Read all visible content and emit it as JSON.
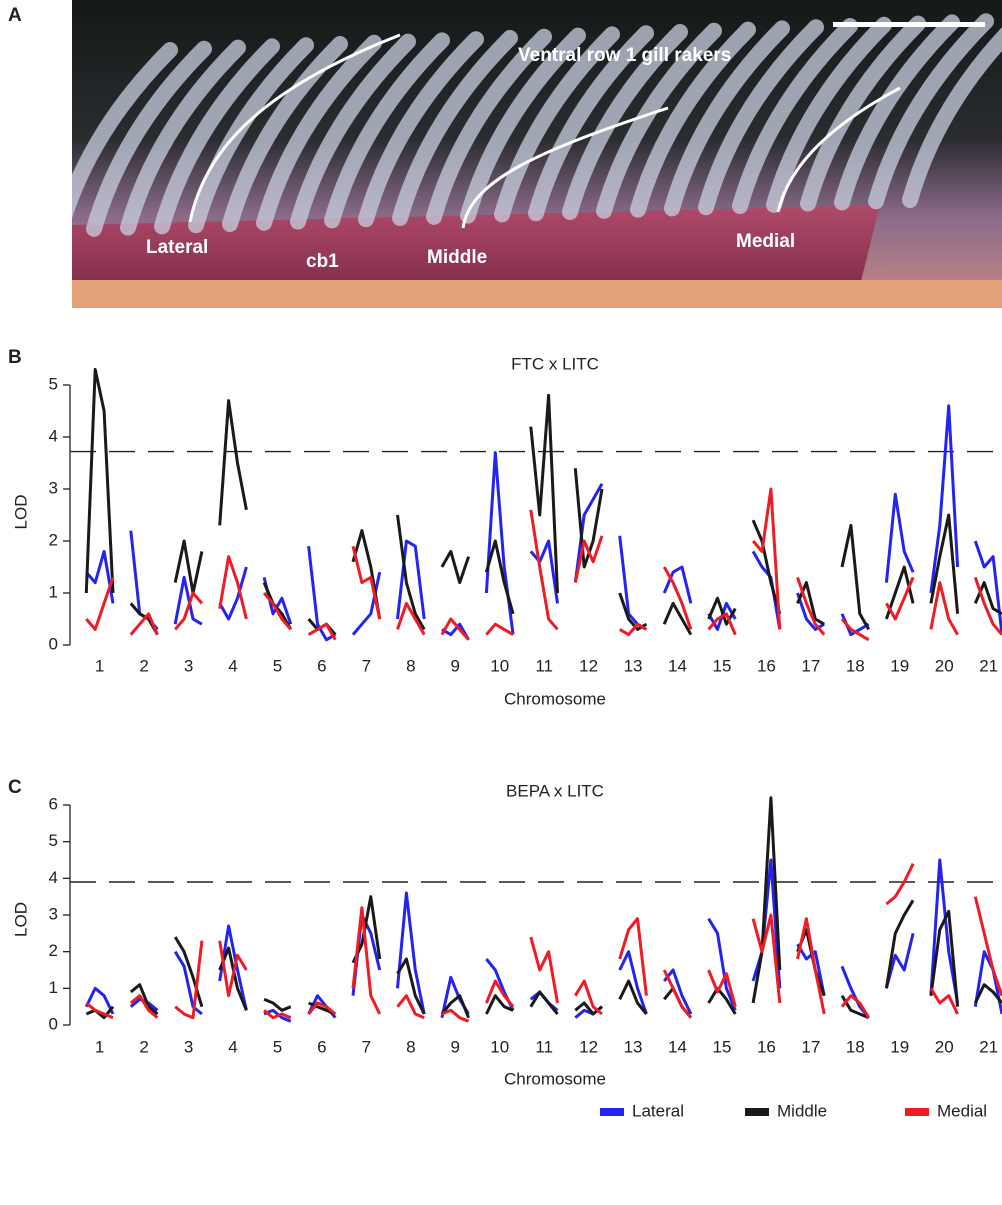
{
  "panel_a": {
    "panel_label": "A",
    "title": "Ventral row 1 gill rakers",
    "labels": [
      "Lateral",
      "cb1",
      "Middle",
      "Medial"
    ]
  },
  "chart_data": [
    {
      "type": "line",
      "panel_label": "B",
      "title": "FTC x LITC",
      "xlabel": "Chromosome",
      "ylabel": "LOD",
      "threshold": 3.72,
      "xlim": [
        0.4,
        21.3
      ],
      "ylim": [
        0,
        5.5
      ],
      "yticks": [
        0,
        1,
        2,
        3,
        4,
        5
      ],
      "xticks": [
        1,
        2,
        3,
        4,
        5,
        6,
        7,
        8,
        9,
        10,
        11,
        12,
        13,
        14,
        15,
        16,
        17,
        18,
        19,
        20,
        21
      ],
      "x": [
        0.7,
        0.9,
        1.1,
        1.3,
        1.5,
        1.7,
        1.9,
        2.1,
        2.3,
        2.5,
        2.7,
        2.9,
        3.1,
        3.3,
        3.5,
        3.7,
        3.9,
        4.1,
        4.3,
        4.5,
        4.7,
        4.9,
        5.1,
        5.3,
        5.5,
        5.7,
        5.9,
        6.1,
        6.3,
        6.5,
        6.7,
        6.9,
        7.1,
        7.3,
        7.5,
        7.7,
        7.9,
        8.1,
        8.3,
        8.5,
        8.7,
        8.9,
        9.1,
        9.3,
        9.5,
        9.7,
        9.9,
        10.1,
        10.3,
        10.5,
        10.7,
        10.9,
        11.1,
        11.3,
        11.5,
        11.7,
        11.9,
        12.1,
        12.3,
        12.5,
        12.7,
        12.9,
        13.1,
        13.3,
        13.5,
        13.7,
        13.9,
        14.1,
        14.3,
        14.5,
        14.7,
        14.9,
        15.1,
        15.3,
        15.5,
        15.7,
        15.9,
        16.1,
        16.3,
        16.5,
        16.7,
        16.9,
        17.1,
        17.3,
        17.5,
        17.7,
        17.9,
        18.1,
        18.3,
        18.5,
        18.7,
        18.9,
        19.1,
        19.3,
        19.5,
        19.7,
        19.9,
        20.1,
        20.3,
        20.5,
        20.7,
        20.9,
        21.1,
        21.3
      ],
      "series": [
        {
          "color": "#2424f2",
          "values": [
            1.4,
            1.2,
            1.8,
            0.8,
            null,
            2.2,
            0.6,
            0.5,
            0.3,
            null,
            0.4,
            1.3,
            0.5,
            0.4,
            null,
            0.8,
            0.5,
            0.9,
            1.5,
            null,
            1.3,
            0.6,
            0.9,
            0.4,
            null,
            1.9,
            0.4,
            0.1,
            0.2,
            null,
            0.2,
            0.4,
            0.6,
            1.4,
            null,
            0.5,
            2.0,
            1.9,
            0.5,
            null,
            0.3,
            0.2,
            0.4,
            0.1,
            null,
            1.0,
            3.7,
            1.5,
            0.2,
            null,
            1.8,
            1.6,
            2.0,
            0.8,
            null,
            1.2,
            2.5,
            2.8,
            3.1,
            null,
            2.1,
            0.6,
            0.4,
            0.3,
            null,
            1.0,
            1.4,
            1.5,
            0.8,
            null,
            0.6,
            0.3,
            0.8,
            0.5,
            null,
            1.8,
            1.5,
            1.3,
            0.3,
            null,
            1.0,
            0.5,
            0.3,
            0.4,
            null,
            0.6,
            0.2,
            0.3,
            0.4,
            null,
            1.2,
            2.9,
            1.8,
            1.4,
            null,
            1.0,
            2.3,
            4.6,
            1.5,
            null,
            2.0,
            1.5,
            1.7,
            0.2
          ]
        },
        {
          "color": "#1a1a1a",
          "values": [
            1.0,
            5.3,
            4.5,
            1.0,
            null,
            0.8,
            0.6,
            0.5,
            0.2,
            null,
            1.2,
            2.0,
            1.0,
            1.8,
            null,
            2.3,
            4.7,
            3.5,
            2.6,
            null,
            1.2,
            0.8,
            0.6,
            0.3,
            null,
            0.5,
            0.3,
            0.4,
            0.2,
            null,
            1.6,
            2.2,
            1.5,
            0.5,
            null,
            2.5,
            1.2,
            0.6,
            0.3,
            null,
            1.5,
            1.8,
            1.2,
            1.7,
            null,
            1.4,
            2.0,
            1.2,
            0.6,
            null,
            4.2,
            2.5,
            4.8,
            1.0,
            null,
            3.4,
            1.5,
            2.0,
            3.0,
            null,
            1.0,
            0.5,
            0.3,
            0.4,
            null,
            0.4,
            0.8,
            0.5,
            0.2,
            null,
            0.5,
            0.9,
            0.4,
            0.7,
            null,
            2.4,
            2.0,
            1.2,
            0.6,
            null,
            0.8,
            1.2,
            0.5,
            0.4,
            null,
            1.5,
            2.3,
            0.6,
            0.3,
            null,
            0.5,
            1.0,
            1.5,
            0.8,
            null,
            0.8,
            1.7,
            2.5,
            0.6,
            null,
            0.8,
            1.2,
            0.7,
            0.6
          ]
        },
        {
          "color": "#ee1c25",
          "values": [
            0.5,
            0.3,
            0.8,
            1.3,
            null,
            0.2,
            0.4,
            0.6,
            0.2,
            null,
            0.3,
            0.5,
            1.0,
            0.8,
            null,
            0.7,
            1.7,
            1.2,
            0.5,
            null,
            1.0,
            0.8,
            0.5,
            0.3,
            null,
            0.2,
            0.3,
            0.4,
            0.1,
            null,
            1.9,
            1.2,
            1.3,
            0.5,
            null,
            0.3,
            0.8,
            0.5,
            0.2,
            null,
            0.2,
            0.5,
            0.3,
            0.1,
            null,
            0.2,
            0.4,
            0.3,
            0.2,
            null,
            2.6,
            1.5,
            0.5,
            0.3,
            null,
            1.2,
            2.0,
            1.6,
            2.1,
            null,
            0.3,
            0.2,
            0.4,
            0.3,
            null,
            1.5,
            1.2,
            0.8,
            0.3,
            null,
            0.3,
            0.5,
            0.6,
            0.2,
            null,
            2.0,
            1.8,
            3.0,
            0.3,
            null,
            1.3,
            0.8,
            0.4,
            0.2,
            null,
            0.5,
            0.3,
            0.2,
            0.1,
            null,
            0.8,
            0.5,
            0.9,
            1.3,
            null,
            0.3,
            1.2,
            0.5,
            0.2,
            null,
            1.3,
            0.8,
            0.4,
            0.2
          ]
        }
      ]
    },
    {
      "type": "line",
      "panel_label": "C",
      "title": "BEPA x LITC",
      "xlabel": "Chromosome",
      "ylabel": "LOD",
      "threshold": 3.9,
      "xlim": [
        0.4,
        21.3
      ],
      "ylim": [
        0,
        6.3
      ],
      "yticks": [
        0,
        1,
        2,
        3,
        4,
        5,
        6
      ],
      "xticks": [
        1,
        2,
        3,
        4,
        5,
        6,
        7,
        8,
        9,
        10,
        11,
        12,
        13,
        14,
        15,
        16,
        17,
        18,
        19,
        20,
        21
      ],
      "legend": "bottom-right",
      "x": [
        0.7,
        0.9,
        1.1,
        1.3,
        1.5,
        1.7,
        1.9,
        2.1,
        2.3,
        2.5,
        2.7,
        2.9,
        3.1,
        3.3,
        3.5,
        3.7,
        3.9,
        4.1,
        4.3,
        4.5,
        4.7,
        4.9,
        5.1,
        5.3,
        5.5,
        5.7,
        5.9,
        6.1,
        6.3,
        6.5,
        6.7,
        6.9,
        7.1,
        7.3,
        7.5,
        7.7,
        7.9,
        8.1,
        8.3,
        8.5,
        8.7,
        8.9,
        9.1,
        9.3,
        9.5,
        9.7,
        9.9,
        10.1,
        10.3,
        10.5,
        10.7,
        10.9,
        11.1,
        11.3,
        11.5,
        11.7,
        11.9,
        12.1,
        12.3,
        12.5,
        12.7,
        12.9,
        13.1,
        13.3,
        13.5,
        13.7,
        13.9,
        14.1,
        14.3,
        14.5,
        14.7,
        14.9,
        15.1,
        15.3,
        15.5,
        15.7,
        15.9,
        16.1,
        16.3,
        16.5,
        16.7,
        16.9,
        17.1,
        17.3,
        17.5,
        17.7,
        17.9,
        18.1,
        18.3,
        18.5,
        18.7,
        18.9,
        19.1,
        19.3,
        19.5,
        19.7,
        19.9,
        20.1,
        20.3,
        20.5,
        20.7,
        20.9,
        21.1,
        21.3
      ],
      "series": [
        {
          "name": "Lateral",
          "color": "#2424f2",
          "values": [
            0.5,
            1.0,
            0.8,
            0.3,
            null,
            0.5,
            0.7,
            0.6,
            0.4,
            null,
            2.0,
            1.6,
            0.5,
            0.3,
            null,
            1.2,
            2.7,
            1.5,
            0.4,
            null,
            0.3,
            0.4,
            0.2,
            0.1,
            null,
            0.3,
            0.8,
            0.5,
            0.2,
            null,
            0.8,
            3.0,
            2.5,
            1.5,
            null,
            1.0,
            3.6,
            1.5,
            0.3,
            null,
            0.2,
            1.3,
            0.7,
            0.3,
            null,
            1.8,
            1.5,
            0.9,
            0.4,
            null,
            0.7,
            0.9,
            0.6,
            0.4,
            null,
            0.2,
            0.4,
            0.3,
            0.5,
            null,
            1.5,
            2.0,
            1.0,
            0.3,
            null,
            1.2,
            1.5,
            0.8,
            0.3,
            null,
            2.9,
            2.5,
            1.0,
            0.4,
            null,
            1.2,
            2.0,
            4.5,
            1.0,
            null,
            2.2,
            1.8,
            2.0,
            0.8,
            null,
            1.6,
            1.0,
            0.5,
            0.2,
            null,
            1.0,
            1.9,
            1.5,
            2.5,
            null,
            0.8,
            4.5,
            2.0,
            0.6,
            null,
            0.5,
            2.0,
            1.5,
            0.3
          ]
        },
        {
          "name": "Middle",
          "color": "#1a1a1a",
          "values": [
            0.3,
            0.4,
            0.2,
            0.5,
            null,
            0.9,
            1.1,
            0.5,
            0.3,
            null,
            2.4,
            2.0,
            1.3,
            0.5,
            null,
            1.5,
            2.1,
            1.0,
            0.4,
            null,
            0.7,
            0.6,
            0.4,
            0.5,
            null,
            0.6,
            0.5,
            0.4,
            0.3,
            null,
            1.7,
            2.2,
            3.5,
            1.8,
            null,
            1.4,
            1.8,
            0.8,
            0.3,
            null,
            0.3,
            0.6,
            0.8,
            0.2,
            null,
            0.3,
            0.8,
            0.5,
            0.4,
            null,
            0.5,
            0.9,
            0.6,
            0.3,
            null,
            0.4,
            0.6,
            0.3,
            0.5,
            null,
            0.7,
            1.2,
            0.6,
            0.3,
            null,
            0.7,
            1.0,
            0.5,
            0.2,
            null,
            0.6,
            1.0,
            0.7,
            0.3,
            null,
            0.6,
            2.0,
            6.2,
            1.5,
            null,
            2.0,
            2.6,
            1.5,
            0.8,
            null,
            0.8,
            0.4,
            0.3,
            0.2,
            null,
            1.0,
            2.5,
            3.0,
            3.4,
            null,
            0.8,
            2.6,
            3.1,
            0.5,
            null,
            0.6,
            1.1,
            0.9,
            0.6
          ]
        },
        {
          "name": "Medial",
          "color": "#ee1c25",
          "values": [
            0.6,
            0.4,
            0.3,
            0.2,
            null,
            0.6,
            0.8,
            0.4,
            0.2,
            null,
            0.5,
            0.3,
            0.2,
            2.3,
            null,
            2.3,
            0.8,
            1.9,
            1.5,
            null,
            0.4,
            0.2,
            0.3,
            0.2,
            null,
            0.3,
            0.6,
            0.5,
            0.3,
            null,
            1.0,
            3.2,
            0.8,
            0.3,
            null,
            0.5,
            0.8,
            0.3,
            0.2,
            null,
            0.3,
            0.4,
            0.2,
            0.1,
            null,
            0.6,
            1.2,
            0.8,
            0.5,
            null,
            2.4,
            1.5,
            2.0,
            0.6,
            null,
            0.8,
            1.2,
            0.5,
            0.3,
            null,
            1.8,
            2.6,
            2.9,
            0.8,
            null,
            1.5,
            1.0,
            0.5,
            0.2,
            null,
            1.5,
            0.9,
            1.4,
            0.5,
            null,
            2.9,
            2.0,
            3.0,
            0.6,
            null,
            1.8,
            2.9,
            1.5,
            0.3,
            null,
            0.5,
            0.8,
            0.6,
            0.2,
            null,
            3.3,
            3.5,
            3.9,
            4.4,
            null,
            1.0,
            0.6,
            0.8,
            0.3,
            null,
            3.5,
            2.5,
            1.5,
            0.8
          ]
        }
      ]
    }
  ]
}
